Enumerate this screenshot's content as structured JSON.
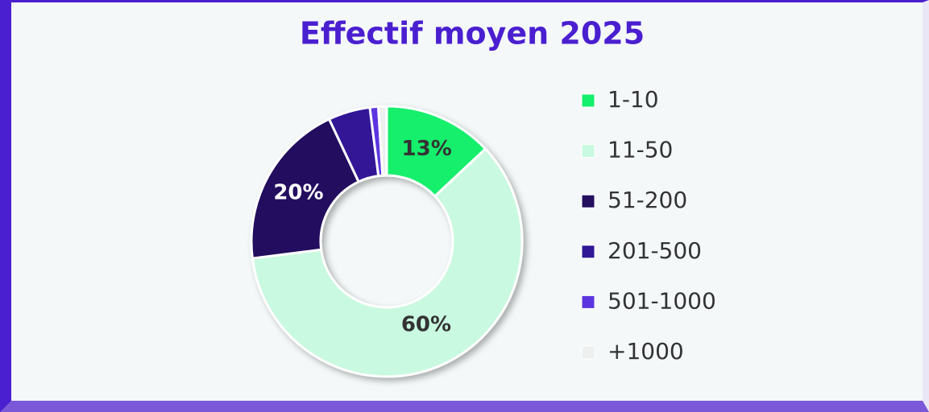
{
  "chart_data": {
    "type": "donut",
    "title": "Effectif moyen 2025",
    "categories": [
      "1-10",
      "11-50",
      "51-200",
      "201-500",
      "501-1000",
      "+1000"
    ],
    "values": [
      13,
      60,
      20,
      5,
      1,
      1
    ],
    "value_labels": [
      "13%",
      "60%",
      "20%",
      null,
      null,
      null
    ],
    "colors": [
      "#14ef6c",
      "#c9f9e0",
      "#24105f",
      "#301896",
      "#5b36e0",
      "#eef0f0"
    ],
    "legend": "right"
  }
}
